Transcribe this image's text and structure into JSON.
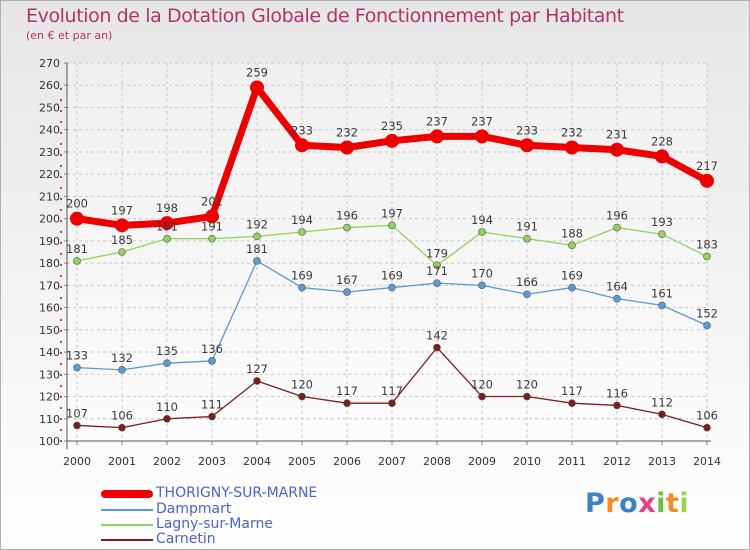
{
  "header": {
    "title": "Evolution de la Dotation Globale de Fonctionnement par Habitant",
    "subtitle": "(en € et par an)"
  },
  "logo": {
    "text": "Proxiti"
  },
  "colors": {
    "title": "#b5306f",
    "legend_text": "#4a63c8",
    "grid": "#c8c8c8",
    "axis_red": "#d40000"
  },
  "chart_data": {
    "type": "line",
    "title": "Evolution de la Dotation Globale de Fonctionnement par Habitant",
    "subtitle": "(en € et par an)",
    "xlabel": "",
    "ylabel": "",
    "x": [
      "2000",
      "2001",
      "2002",
      "2003",
      "2004",
      "2005",
      "2006",
      "2007",
      "2008",
      "2009",
      "2010",
      "2011",
      "2012",
      "2013",
      "2014"
    ],
    "ylim": [
      100,
      270
    ],
    "yticks": [
      100,
      110,
      120,
      130,
      140,
      150,
      160,
      170,
      180,
      190,
      200,
      210,
      220,
      230,
      240,
      250,
      260,
      270
    ],
    "grid": true,
    "legend_position": "bottom-left",
    "series": [
      {
        "name": "THORIGNY-SUR-MARNE",
        "color": "#ee0000",
        "emphasis": true,
        "values": [
          200,
          197,
          198,
          201,
          259,
          233,
          232,
          235,
          237,
          237,
          233,
          232,
          231,
          228,
          217
        ],
        "labels": [
          "200",
          "197",
          "198",
          "201",
          "259",
          "233",
          "232",
          "235",
          "237",
          "237",
          "233",
          "232",
          "231",
          "228",
          "217"
        ]
      },
      {
        "name": "Dampmart",
        "color": "#5b9bd5",
        "emphasis": false,
        "values": [
          133,
          132,
          135,
          136,
          181,
          169,
          167,
          169,
          171,
          170,
          166,
          169,
          164,
          161,
          152
        ],
        "labels": [
          "133",
          "132",
          "135",
          "136",
          "181",
          "169",
          "167",
          "169",
          "171",
          "170",
          "166",
          "169",
          "164",
          "161",
          "152"
        ]
      },
      {
        "name": "Lagny-sur-Marne",
        "color": "#8ed45a",
        "emphasis": false,
        "values": [
          181,
          185,
          191,
          191,
          192,
          194,
          196,
          197,
          179,
          194,
          191,
          188,
          196,
          193,
          183
        ],
        "labels": [
          "181",
          "185",
          "191",
          "191",
          "192",
          "194",
          "196",
          "197",
          "179",
          "194",
          "191",
          "188",
          "196",
          "193",
          "183"
        ]
      },
      {
        "name": "Carnetin",
        "color": "#7a1f1f",
        "emphasis": false,
        "values": [
          107,
          106,
          110,
          111,
          127,
          120,
          117,
          117,
          142,
          120,
          120,
          117,
          116,
          112,
          106
        ],
        "labels": [
          "107",
          "106",
          "110",
          "111",
          "127",
          "120",
          "117",
          "117",
          "142",
          "120",
          "120",
          "117",
          "116",
          "112",
          "106"
        ]
      }
    ]
  }
}
